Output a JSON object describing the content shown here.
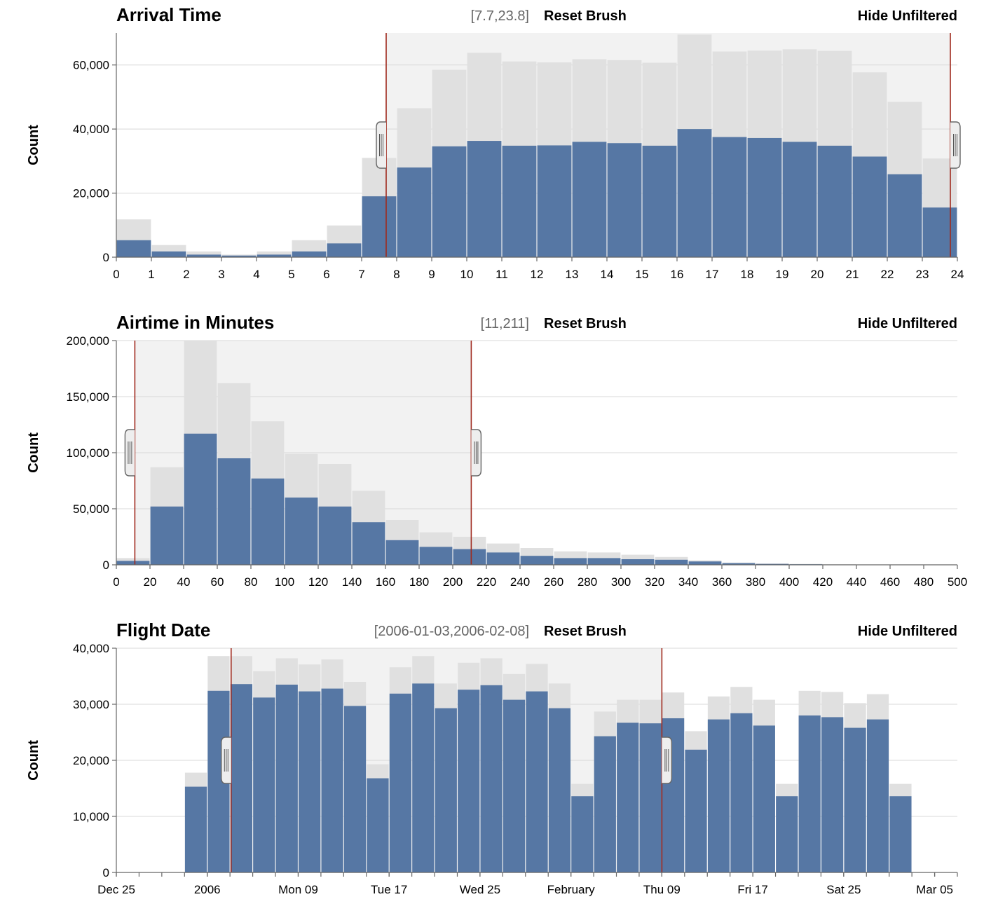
{
  "colors": {
    "filtered": "#5677a4",
    "unfiltered": "#e0e0e0",
    "brush_region": "#f2f2f2",
    "brush_edge": "#a02a1e"
  },
  "chart_data": [
    {
      "type": "bar",
      "title": "Arrival Time",
      "range_label": "[7.7,23.8]",
      "reset_label": "Reset Brush",
      "hide_label": "Hide Unfiltered",
      "ylabel": "Count",
      "ylim": [
        0,
        70000
      ],
      "yticks": [
        0,
        20000,
        40000,
        60000
      ],
      "ytick_labels": [
        "0",
        "20,000",
        "40,000",
        "60,000"
      ],
      "xlim": [
        0,
        24
      ],
      "xticks": [
        0,
        1,
        2,
        3,
        4,
        5,
        6,
        7,
        8,
        9,
        10,
        11,
        12,
        13,
        14,
        15,
        16,
        17,
        18,
        19,
        20,
        21,
        22,
        23,
        24
      ],
      "xtick_labels": [
        "0",
        "1",
        "2",
        "3",
        "4",
        "5",
        "6",
        "7",
        "8",
        "9",
        "10",
        "11",
        "12",
        "13",
        "14",
        "15",
        "16",
        "17",
        "18",
        "19",
        "20",
        "21",
        "22",
        "23",
        "24"
      ],
      "bin_start": 0,
      "bin_width": 1,
      "brush": [
        7.7,
        23.8
      ],
      "series": [
        {
          "name": "unfiltered",
          "values": [
            11800,
            3800,
            1800,
            800,
            1800,
            5300,
            9900,
            31000,
            46500,
            58500,
            63800,
            61100,
            60800,
            61800,
            61500,
            60700,
            69500,
            64200,
            64500,
            64900,
            64400,
            57700,
            48500,
            30800
          ]
        },
        {
          "name": "filtered",
          "values": [
            5300,
            1800,
            800,
            500,
            800,
            1800,
            4300,
            19000,
            28000,
            34600,
            36300,
            34800,
            34900,
            36000,
            35600,
            34800,
            40000,
            37500,
            37200,
            36000,
            34800,
            31400,
            25900,
            15500
          ]
        }
      ]
    },
    {
      "type": "bar",
      "title": "Airtime in Minutes",
      "range_label": "[11,211]",
      "reset_label": "Reset Brush",
      "hide_label": "Hide Unfiltered",
      "ylabel": "Count",
      "ylim": [
        0,
        200000
      ],
      "yticks": [
        0,
        50000,
        100000,
        150000,
        200000
      ],
      "ytick_labels": [
        "0",
        "50,000",
        "100,000",
        "150,000",
        "200,000"
      ],
      "xlim": [
        0,
        500
      ],
      "xticks": [
        0,
        20,
        40,
        60,
        80,
        100,
        120,
        140,
        160,
        180,
        200,
        220,
        240,
        260,
        280,
        300,
        320,
        340,
        360,
        380,
        400,
        420,
        440,
        460,
        480,
        500
      ],
      "xtick_labels": [
        "0",
        "20",
        "40",
        "60",
        "80",
        "100",
        "120",
        "140",
        "160",
        "180",
        "200",
        "220",
        "240",
        "260",
        "280",
        "300",
        "320",
        "340",
        "360",
        "380",
        "400",
        "420",
        "440",
        "460",
        "480",
        "500"
      ],
      "bin_start": 0,
      "bin_width": 20,
      "brush": [
        11,
        211
      ],
      "series": [
        {
          "name": "unfiltered",
          "values": [
            6000,
            87000,
            200000,
            162000,
            128000,
            99000,
            90000,
            66000,
            40000,
            29000,
            25000,
            19000,
            15000,
            12000,
            11000,
            9000,
            7000,
            4000,
            2000,
            1200,
            800,
            500,
            300,
            200,
            100
          ]
        },
        {
          "name": "filtered",
          "values": [
            3500,
            52000,
            117000,
            95000,
            77000,
            60000,
            52000,
            38000,
            22000,
            16000,
            14000,
            11000,
            8000,
            6000,
            6000,
            5000,
            4500,
            3000,
            1500,
            800,
            500,
            300,
            200,
            100,
            50
          ]
        }
      ]
    },
    {
      "type": "bar",
      "title": "Flight Date",
      "range_label": "[2006-01-03,2006-02-08]",
      "reset_label": "Reset Brush",
      "hide_label": "Hide Unfiltered",
      "ylabel": "Count",
      "ylim": [
        0,
        40000
      ],
      "yticks": [
        0,
        10000,
        20000,
        30000,
        40000
      ],
      "ytick_labels": [
        "0",
        "10,000",
        "20,000",
        "30,000",
        "40,000"
      ],
      "xlim": [
        0,
        74
      ],
      "xticks": [
        0,
        8,
        16,
        24,
        32,
        40,
        48,
        56,
        64,
        72
      ],
      "xtick_labels": [
        "Dec 25",
        "2006",
        "Mon 09",
        "Tue 17",
        "Wed 25",
        "February",
        "Thu 09",
        "Fri 17",
        "Sat 25",
        "Mar 05"
      ],
      "minor_ticks": [
        0,
        2,
        4,
        6,
        8,
        10,
        12,
        14,
        16,
        18,
        20,
        22,
        24,
        26,
        28,
        30,
        32,
        34,
        36,
        38,
        40,
        42,
        44,
        46,
        48,
        50,
        52,
        54,
        56,
        58,
        60,
        62,
        64,
        66,
        68,
        70,
        72,
        74
      ],
      "bin_start": 6,
      "bin_width": 2,
      "brush": [
        10.1,
        48
      ],
      "series": [
        {
          "name": "unfiltered",
          "values": [
            17800,
            38600,
            38600,
            35900,
            38200,
            37100,
            38000,
            34000,
            19300,
            36600,
            38600,
            33700,
            37400,
            38200,
            35400,
            37200,
            33700,
            15800,
            28700,
            30800,
            30800,
            32100,
            25200,
            31400,
            33100,
            30800,
            15800,
            32400,
            32200,
            30200,
            31800,
            15800
          ]
        },
        {
          "name": "filtered",
          "values": [
            15300,
            32400,
            33600,
            31200,
            33500,
            32300,
            32800,
            29700,
            16800,
            31900,
            33700,
            29300,
            32600,
            33400,
            30800,
            32300,
            29300,
            13600,
            24300,
            26700,
            26600,
            27500,
            21900,
            27300,
            28400,
            26200,
            13600,
            28000,
            27700,
            25800,
            27300,
            13600
          ]
        }
      ]
    }
  ]
}
